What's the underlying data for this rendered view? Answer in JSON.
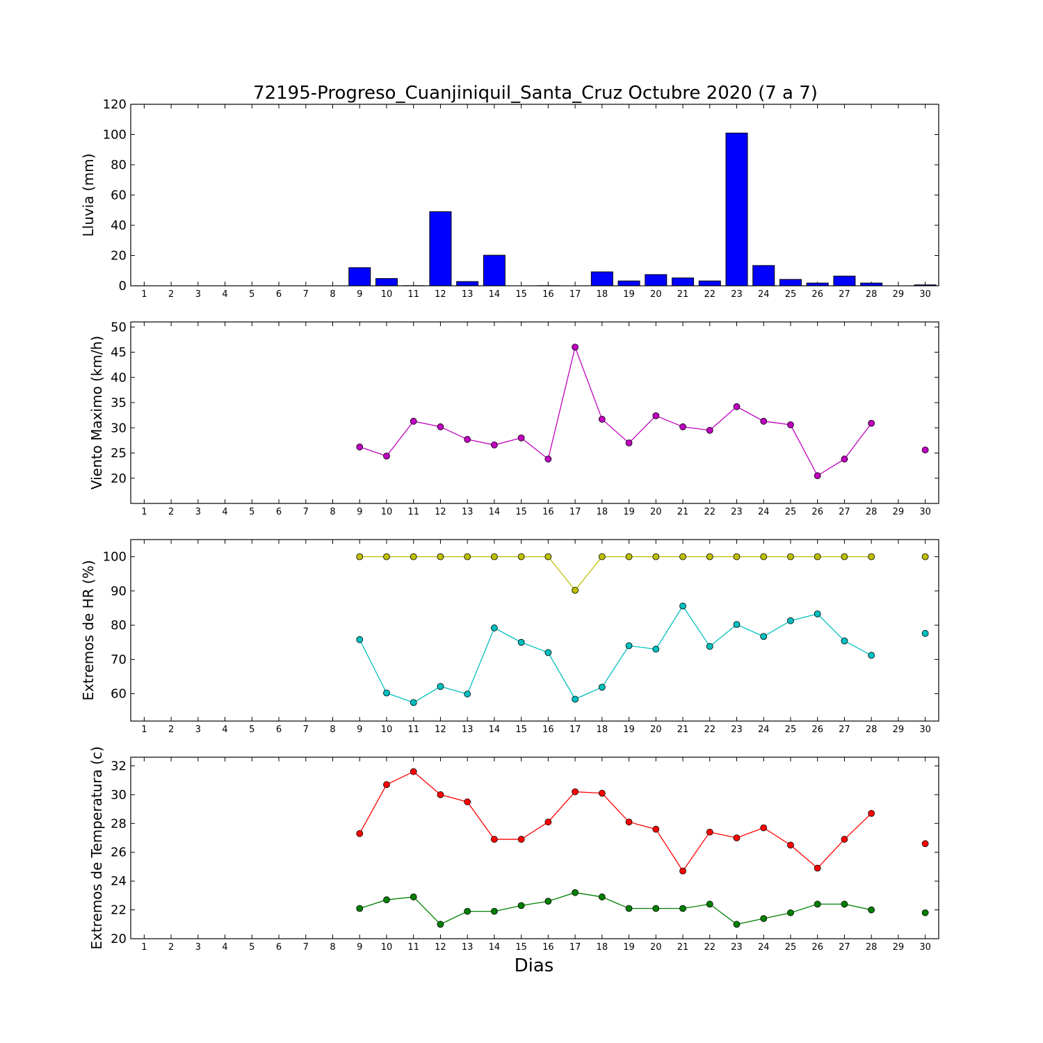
{
  "title": "72195-Progreso_Cuanjiniquil_Santa_Cruz Octubre 2020  (7 a 7)",
  "xlabel": "Dias",
  "days": [
    1,
    2,
    3,
    4,
    5,
    6,
    7,
    8,
    9,
    10,
    11,
    12,
    13,
    14,
    15,
    16,
    17,
    18,
    19,
    20,
    21,
    22,
    23,
    24,
    25,
    26,
    27,
    28,
    29,
    30
  ],
  "chart_data": [
    {
      "type": "bar",
      "ylabel": "Lluvia (mm)",
      "ylim": [
        0,
        120
      ],
      "yticks": [
        0,
        20,
        40,
        60,
        80,
        100,
        120
      ],
      "series": [
        {
          "color": "#0000ff",
          "values": [
            0,
            0,
            0,
            0,
            0,
            0,
            0,
            0,
            12,
            4.8,
            0.1,
            49,
            2.8,
            20.2,
            0,
            0.1,
            0,
            9.2,
            3.2,
            7.4,
            5.2,
            3.2,
            101,
            13.4,
            4.2,
            1.8,
            6.4,
            1.8,
            0,
            0.6
          ]
        }
      ]
    },
    {
      "type": "line",
      "ylabel": "Viento Maximo (km/h)",
      "ylim": [
        15,
        51
      ],
      "yticks": [
        20,
        25,
        30,
        35,
        40,
        45,
        50
      ],
      "series": [
        {
          "color": "#bf00bf",
          "values": [
            null,
            null,
            null,
            null,
            null,
            null,
            null,
            null,
            26.2,
            24.4,
            31.3,
            30.2,
            27.7,
            26.6,
            28,
            23.8,
            46,
            31.7,
            27,
            32.4,
            30.2,
            29.5,
            34.2,
            31.3,
            30.6,
            20.5,
            23.8,
            30.9,
            null,
            25.6
          ]
        }
      ]
    },
    {
      "type": "line",
      "ylabel": "Extremos de HR (%)",
      "ylim": [
        52,
        105
      ],
      "yticks": [
        60,
        70,
        80,
        90,
        100
      ],
      "series": [
        {
          "color": "#bfbf00",
          "values": [
            null,
            null,
            null,
            null,
            null,
            null,
            null,
            null,
            100,
            100,
            100,
            100,
            100,
            100,
            100,
            100,
            90.2,
            100,
            100,
            100,
            100,
            100,
            100,
            100,
            100,
            100,
            100,
            100,
            null,
            100
          ]
        },
        {
          "color": "#00bfbf",
          "values": [
            null,
            null,
            null,
            null,
            null,
            null,
            null,
            null,
            75.8,
            60.2,
            57.4,
            62.1,
            59.9,
            79.2,
            75,
            72,
            58.4,
            61.9,
            74,
            73,
            85.6,
            73.8,
            80.2,
            76.7,
            81.3,
            83.3,
            75.4,
            71.2,
            null,
            77.6
          ]
        }
      ]
    },
    {
      "type": "line",
      "ylabel": "Extremos de Temperatura (c)",
      "ylim": [
        20,
        32.6
      ],
      "yticks": [
        20,
        22,
        24,
        26,
        28,
        30,
        32
      ],
      "series": [
        {
          "color": "#ff0000",
          "values": [
            null,
            null,
            null,
            null,
            null,
            null,
            null,
            null,
            27.3,
            30.7,
            31.6,
            30,
            29.5,
            26.9,
            26.9,
            28.1,
            30.2,
            30.1,
            28.1,
            27.6,
            24.7,
            27.4,
            27,
            27.7,
            26.5,
            24.9,
            26.9,
            28.7,
            null,
            26.6
          ]
        },
        {
          "color": "#007f00",
          "values": [
            null,
            null,
            null,
            null,
            null,
            null,
            null,
            null,
            22.1,
            22.7,
            22.9,
            21,
            21.9,
            21.9,
            22.3,
            22.6,
            23.2,
            22.9,
            22.1,
            22.1,
            22.1,
            22.4,
            21,
            21.4,
            21.8,
            22.4,
            22.4,
            22,
            null,
            21.8
          ]
        }
      ]
    }
  ]
}
